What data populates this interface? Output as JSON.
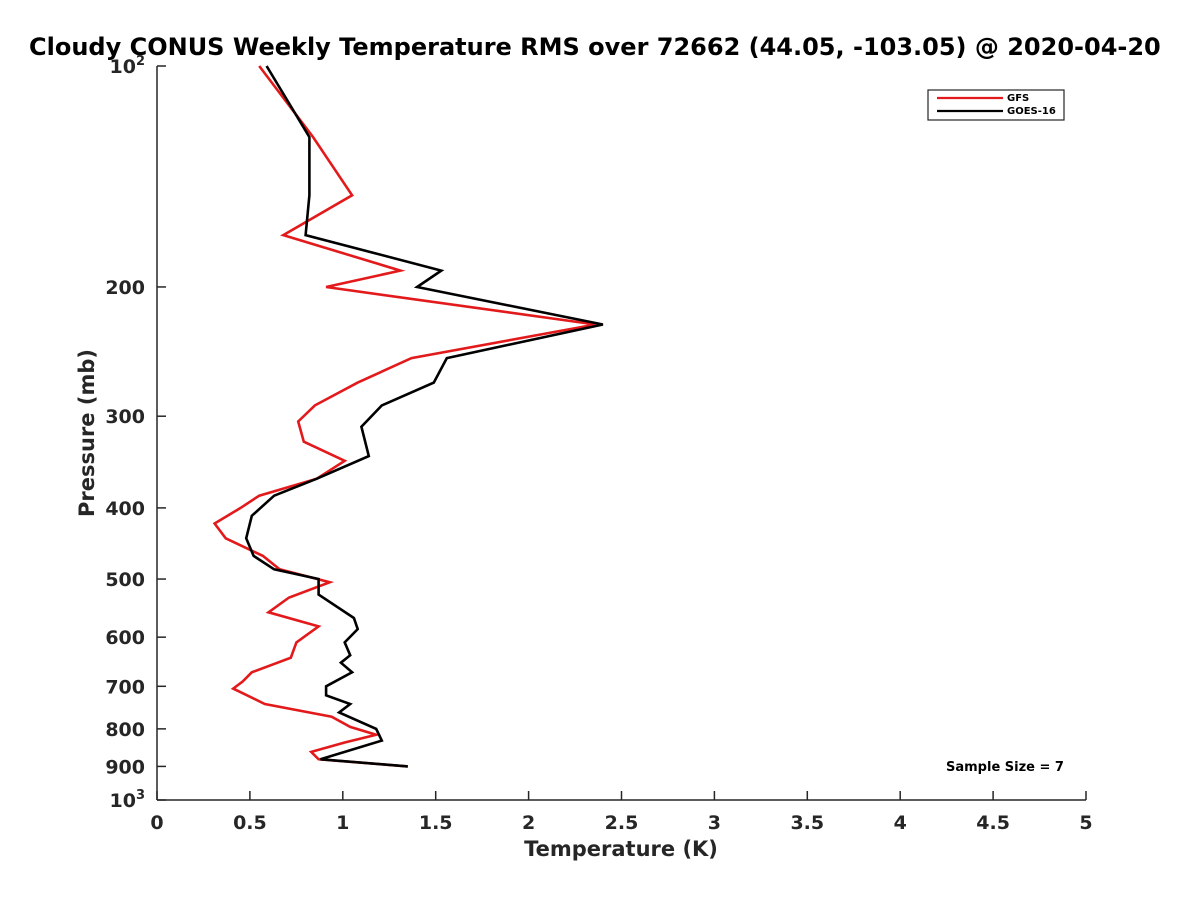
{
  "chart_data": {
    "type": "line",
    "title": "Cloudy CONUS Weekly Temperature RMS over 72662 (44.05, -103.05) @ 2020-04-20",
    "xlabel": "Temperature (K)",
    "ylabel": "Pressure (mb)",
    "xlim": [
      0,
      5
    ],
    "ylim": [
      100,
      1000
    ],
    "y_scale": "log",
    "y_direction": "reversed",
    "x_ticks": [
      "0",
      "0.5",
      "1",
      "1.5",
      "2",
      "2.5",
      "3",
      "3.5",
      "4",
      "4.5",
      "5"
    ],
    "y_ticks": [
      {
        "value": 100,
        "label": "10",
        "sup": "2"
      },
      {
        "value": 200,
        "label": "200",
        "sup": ""
      },
      {
        "value": 300,
        "label": "300",
        "sup": ""
      },
      {
        "value": 400,
        "label": "400",
        "sup": ""
      },
      {
        "value": 500,
        "label": "500",
        "sup": ""
      },
      {
        "value": 600,
        "label": "600",
        "sup": ""
      },
      {
        "value": 700,
        "label": "700",
        "sup": ""
      },
      {
        "value": 800,
        "label": "800",
        "sup": ""
      },
      {
        "value": 900,
        "label": "900",
        "sup": ""
      },
      {
        "value": 1000,
        "label": "10",
        "sup": "3"
      }
    ],
    "grid": false,
    "legend_position": "top-right",
    "annotation": "Sample Size = 7",
    "series": [
      {
        "name": "GFS",
        "color": "#e31a1c",
        "points": [
          [
            0.55,
            100
          ],
          [
            0.84,
            125
          ],
          [
            1.05,
            150
          ],
          [
            0.68,
            170
          ],
          [
            1.31,
            190
          ],
          [
            0.91,
            200
          ],
          [
            2.36,
            225
          ],
          [
            1.37,
            250
          ],
          [
            1.08,
            270
          ],
          [
            0.85,
            290
          ],
          [
            0.76,
            305
          ],
          [
            0.79,
            325
          ],
          [
            1.01,
            345
          ],
          [
            0.86,
            365
          ],
          [
            0.55,
            385
          ],
          [
            0.45,
            400
          ],
          [
            0.31,
            420
          ],
          [
            0.37,
            440
          ],
          [
            0.57,
            465
          ],
          [
            0.66,
            485
          ],
          [
            0.93,
            505
          ],
          [
            0.71,
            530
          ],
          [
            0.6,
            555
          ],
          [
            0.87,
            580
          ],
          [
            0.75,
            610
          ],
          [
            0.72,
            640
          ],
          [
            0.51,
            670
          ],
          [
            0.46,
            690
          ],
          [
            0.41,
            705
          ],
          [
            0.58,
            740
          ],
          [
            0.94,
            770
          ],
          [
            1.04,
            795
          ],
          [
            1.18,
            815
          ],
          [
            1.01,
            835
          ],
          [
            0.83,
            860
          ],
          [
            0.87,
            880
          ],
          [
            1.35,
            900
          ]
        ]
      },
      {
        "name": "GOES-16",
        "color": "#000000",
        "points": [
          [
            0.59,
            100
          ],
          [
            0.82,
            125
          ],
          [
            0.82,
            150
          ],
          [
            0.8,
            170
          ],
          [
            1.53,
            190
          ],
          [
            1.4,
            200
          ],
          [
            2.4,
            225
          ],
          [
            1.56,
            250
          ],
          [
            1.49,
            270
          ],
          [
            1.21,
            290
          ],
          [
            1.1,
            310
          ],
          [
            1.14,
            340
          ],
          [
            0.86,
            365
          ],
          [
            0.63,
            385
          ],
          [
            0.51,
            410
          ],
          [
            0.48,
            440
          ],
          [
            0.52,
            465
          ],
          [
            0.63,
            485
          ],
          [
            0.87,
            500
          ],
          [
            0.87,
            525
          ],
          [
            1.06,
            565
          ],
          [
            1.08,
            585
          ],
          [
            1.01,
            610
          ],
          [
            1.04,
            635
          ],
          [
            0.99,
            650
          ],
          [
            1.05,
            670
          ],
          [
            0.91,
            700
          ],
          [
            0.91,
            720
          ],
          [
            1.04,
            740
          ],
          [
            0.98,
            760
          ],
          [
            1.18,
            800
          ],
          [
            1.21,
            830
          ],
          [
            0.88,
            880
          ],
          [
            1.35,
            900
          ]
        ]
      }
    ]
  }
}
